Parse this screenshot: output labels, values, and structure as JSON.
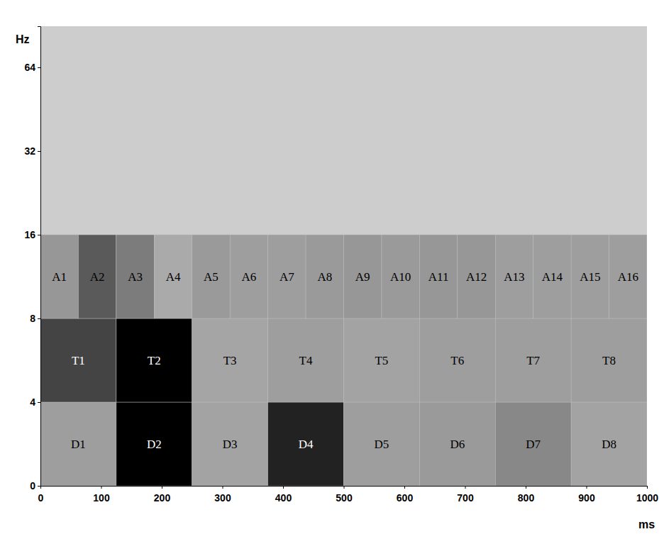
{
  "chart_data": {
    "type": "heatmap",
    "x_label": "ms",
    "y_label": "Hz",
    "xlim": [
      0,
      1000
    ],
    "xticks": [
      0,
      100,
      200,
      300,
      400,
      500,
      600,
      700,
      800,
      900,
      1000
    ],
    "ylim": [
      0,
      90
    ],
    "yticks": [
      0,
      4,
      8,
      16,
      32,
      64
    ],
    "cells": [
      {
        "label": "D1",
        "x": [
          0,
          125
        ],
        "y": [
          0,
          4
        ],
        "value": 0.3
      },
      {
        "label": "D2",
        "x": [
          125,
          250
        ],
        "y": [
          0,
          4
        ],
        "value": 1
      },
      {
        "label": "D3",
        "x": [
          250,
          375
        ],
        "y": [
          0,
          4
        ],
        "value": 0.28
      },
      {
        "label": "D4",
        "x": [
          375,
          500
        ],
        "y": [
          0,
          4
        ],
        "value": 0.85
      },
      {
        "label": "D5",
        "x": [
          500,
          625
        ],
        "y": [
          0,
          4
        ],
        "value": 0.3
      },
      {
        "label": "D6",
        "x": [
          625,
          750
        ],
        "y": [
          0,
          4
        ],
        "value": 0.32
      },
      {
        "label": "D7",
        "x": [
          750,
          875
        ],
        "y": [
          0,
          4
        ],
        "value": 0.4
      },
      {
        "label": "D8",
        "x": [
          875,
          1000
        ],
        "y": [
          0,
          4
        ],
        "value": 0.28
      },
      {
        "label": "T1",
        "x": [
          0,
          125
        ],
        "y": [
          4,
          8
        ],
        "value": 0.7
      },
      {
        "label": "T2",
        "x": [
          125,
          250
        ],
        "y": [
          4,
          8
        ],
        "value": 1
      },
      {
        "label": "T3",
        "x": [
          250,
          375
        ],
        "y": [
          4,
          8
        ],
        "value": 0.27
      },
      {
        "label": "T4",
        "x": [
          375,
          500
        ],
        "y": [
          4,
          8
        ],
        "value": 0.3
      },
      {
        "label": "T5",
        "x": [
          500,
          625
        ],
        "y": [
          4,
          8
        ],
        "value": 0.28
      },
      {
        "label": "T6",
        "x": [
          625,
          750
        ],
        "y": [
          4,
          8
        ],
        "value": 0.3
      },
      {
        "label": "T7",
        "x": [
          750,
          875
        ],
        "y": [
          4,
          8
        ],
        "value": 0.3
      },
      {
        "label": "T8",
        "x": [
          875,
          1000
        ],
        "y": [
          4,
          8
        ],
        "value": 0.3
      },
      {
        "label": "A1",
        "x": [
          0,
          62.5
        ],
        "y": [
          8,
          16
        ],
        "value": 0.33
      },
      {
        "label": "A2",
        "x": [
          62.5,
          125
        ],
        "y": [
          8,
          16
        ],
        "value": 0.6
      },
      {
        "label": "A3",
        "x": [
          125,
          187.5
        ],
        "y": [
          8,
          16
        ],
        "value": 0.45
      },
      {
        "label": "A4",
        "x": [
          187.5,
          250
        ],
        "y": [
          8,
          16
        ],
        "value": 0.25
      },
      {
        "label": "A5",
        "x": [
          250,
          312.5
        ],
        "y": [
          8,
          16
        ],
        "value": 0.32
      },
      {
        "label": "A6",
        "x": [
          312.5,
          375
        ],
        "y": [
          8,
          16
        ],
        "value": 0.3
      },
      {
        "label": "A7",
        "x": [
          375,
          437.5
        ],
        "y": [
          8,
          16
        ],
        "value": 0.3
      },
      {
        "label": "A8",
        "x": [
          437.5,
          500
        ],
        "y": [
          8,
          16
        ],
        "value": 0.32
      },
      {
        "label": "A9",
        "x": [
          500,
          562.5
        ],
        "y": [
          8,
          16
        ],
        "value": 0.33
      },
      {
        "label": "A10",
        "x": [
          562.5,
          625
        ],
        "y": [
          8,
          16
        ],
        "value": 0.32
      },
      {
        "label": "A11",
        "x": [
          625,
          687.5
        ],
        "y": [
          8,
          16
        ],
        "value": 0.33
      },
      {
        "label": "A12",
        "x": [
          687.5,
          750
        ],
        "y": [
          8,
          16
        ],
        "value": 0.33
      },
      {
        "label": "A13",
        "x": [
          750,
          812.5
        ],
        "y": [
          8,
          16
        ],
        "value": 0.3
      },
      {
        "label": "A14",
        "x": [
          812.5,
          875
        ],
        "y": [
          8,
          16
        ],
        "value": 0.3
      },
      {
        "label": "A15",
        "x": [
          875,
          937.5
        ],
        "y": [
          8,
          16
        ],
        "value": 0.3
      },
      {
        "label": "A16",
        "x": [
          937.5,
          1000
        ],
        "y": [
          8,
          16
        ],
        "value": 0.3
      }
    ]
  }
}
